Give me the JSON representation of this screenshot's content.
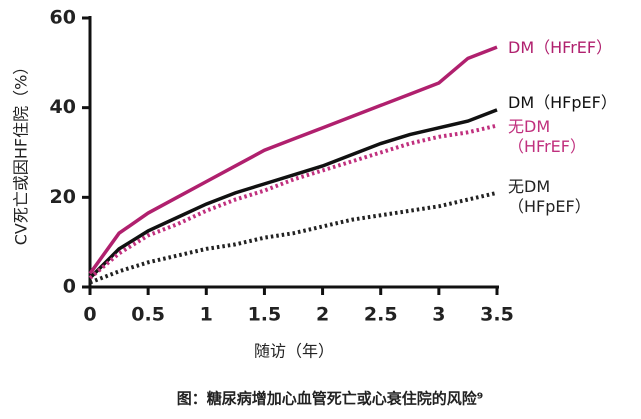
{
  "chart_data": {
    "type": "line",
    "title": "图：糖尿病增加心血管死亡或心衰住院的风险⁹",
    "x_label": "随访（年）",
    "y_label": "CV死亡或因HF住院（%）",
    "x": [
      0,
      0.25,
      0.5,
      0.75,
      1,
      1.25,
      1.5,
      1.75,
      2,
      2.25,
      2.5,
      2.75,
      3,
      3.25,
      3.5
    ],
    "series": [
      {
        "name": "DM（HFrEF）",
        "color": "#b0206e",
        "style": "solid",
        "values": [
          3,
          12,
          16.5,
          20,
          23.5,
          27,
          30.5,
          33,
          35.5,
          38,
          40.5,
          43,
          45.5,
          51,
          53.5
        ]
      },
      {
        "name": "DM（HFpEF）",
        "color": "#111111",
        "style": "solid",
        "values": [
          2,
          8.5,
          12.5,
          15.5,
          18.5,
          21,
          23,
          25,
          27,
          29.5,
          32,
          34,
          35.5,
          37,
          39.5
        ]
      },
      {
        "name": "无DM（HFrEF）",
        "color": "#c0307e",
        "style": "dotted",
        "values": [
          2,
          7.5,
          11.5,
          14,
          17,
          19.5,
          21.5,
          24,
          26,
          28,
          30,
          32,
          33.5,
          34.5,
          36
        ]
      },
      {
        "name": "无DM（HFpEF）",
        "color": "#222222",
        "style": "dotted",
        "values": [
          1,
          3.5,
          5.5,
          7,
          8.5,
          9.5,
          11,
          12,
          13.5,
          15,
          16,
          17,
          18,
          19.5,
          21
        ]
      }
    ],
    "xlim": [
      0,
      3.5
    ],
    "xticks": [
      0,
      0.5,
      1,
      1.5,
      2,
      2.5,
      3,
      3.5
    ],
    "ylim": [
      0,
      60
    ],
    "yticks": [
      0,
      20,
      40,
      60
    ]
  }
}
